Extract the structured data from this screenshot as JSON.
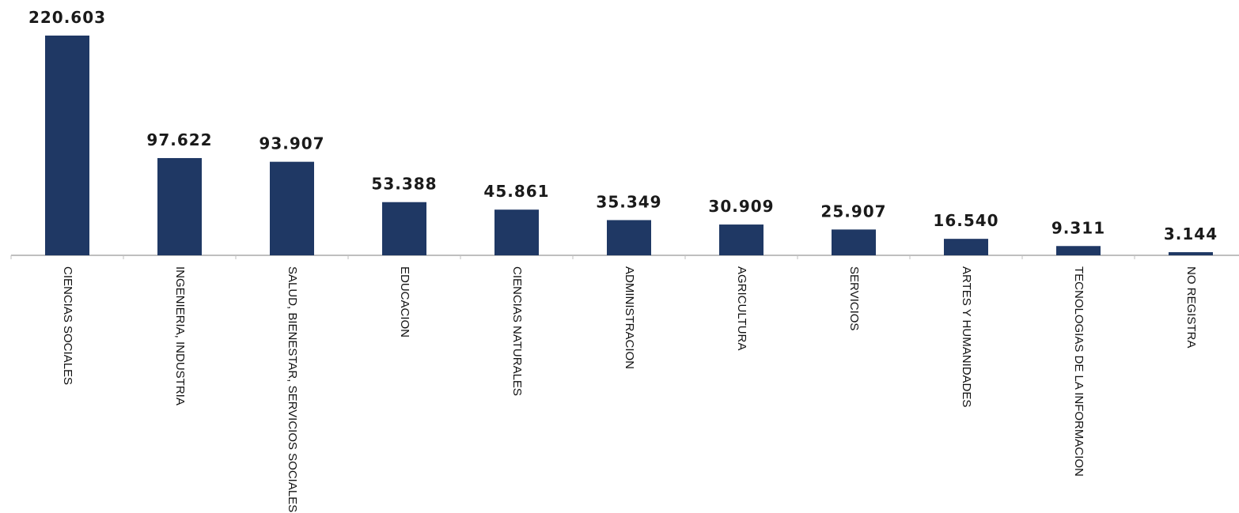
{
  "chart_data": {
    "type": "bar",
    "categories": [
      "CIENCIAS SOCIALES",
      "INGENIERIA, INDUSTRIA",
      "SALUD, BIENESTAR, SERVICIOS SOCIALES",
      "EDUCACION",
      "CIENCIAS NATURALES",
      "ADMINISTRACION",
      "AGRICULTURA",
      "SERVICIOS",
      "ARTES Y HUMANIDADES",
      "TECNOLOGIAS DE LA INFORMACION",
      "NO REGISTRA"
    ],
    "values": [
      220603,
      97622,
      93907,
      53388,
      45861,
      35349,
      30909,
      25907,
      16540,
      9311,
      3144
    ],
    "value_labels": [
      "220.603",
      "97.622",
      "93.907",
      "53.388",
      "45.861",
      "35.349",
      "30.909",
      "25.907",
      "16.540",
      "9.311",
      "3.144"
    ],
    "ylim": [
      0,
      220603
    ],
    "grid": false,
    "legend": "none",
    "bar_color": "#1f3864",
    "axis_color": "#bfbfbf"
  }
}
